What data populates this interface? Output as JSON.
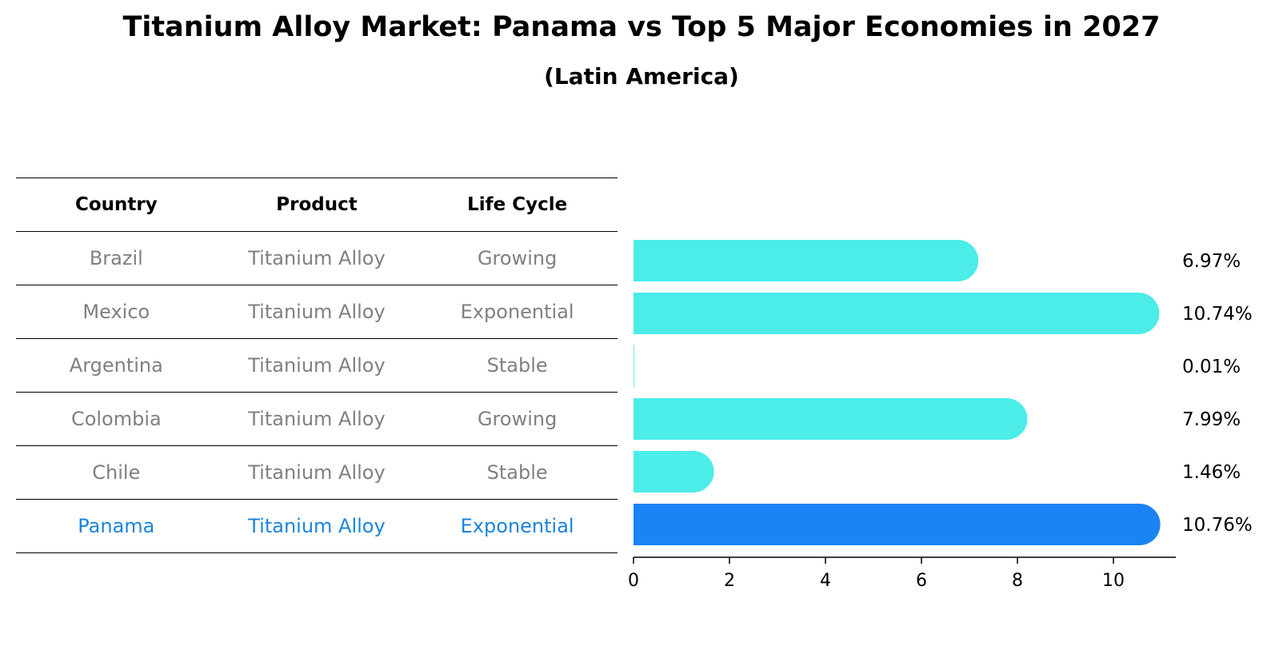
{
  "title": "Titanium Alloy Market: Panama vs Top 5 Major Economies in 2027",
  "subtitle": "(Latin America)",
  "table": {
    "headers": [
      "Country",
      "Product",
      "Life Cycle"
    ],
    "rows": [
      {
        "country": "Brazil",
        "product": "Titanium Alloy",
        "life_cycle": "Growing"
      },
      {
        "country": "Mexico",
        "product": "Titanium Alloy",
        "life_cycle": "Exponential"
      },
      {
        "country": "Argentina",
        "product": "Titanium Alloy",
        "life_cycle": "Stable"
      },
      {
        "country": "Colombia",
        "product": "Titanium Alloy",
        "life_cycle": "Growing"
      },
      {
        "country": "Chile",
        "product": "Titanium Alloy",
        "life_cycle": "Stable"
      },
      {
        "country": "Panama",
        "product": "Titanium Alloy",
        "life_cycle": "Exponential"
      }
    ]
  },
  "colors": {
    "bar": "#4cece8",
    "highlight": "#1a84f5",
    "highlight_text": "#1a84db",
    "muted_text": "#808080"
  },
  "chart_data": {
    "type": "bar",
    "orientation": "horizontal",
    "categories": [
      "Brazil",
      "Mexico",
      "Argentina",
      "Colombia",
      "Chile",
      "Panama"
    ],
    "values": [
      6.97,
      10.74,
      0.01,
      7.99,
      1.46,
      10.76
    ],
    "value_labels": [
      "6.97%",
      "10.74%",
      "0.01%",
      "7.99%",
      "1.46%",
      "10.76%"
    ],
    "highlight": "Panama",
    "xlim": [
      0,
      11.3
    ],
    "xticks": [
      0,
      2,
      4,
      6,
      8,
      10
    ],
    "xlabel": "",
    "ylabel": ""
  }
}
